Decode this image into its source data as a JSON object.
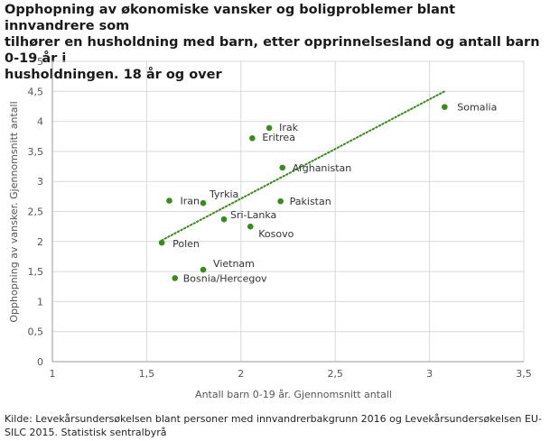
{
  "title_lines": [
    "Opphopning av økonomiske vansker og boligproblemer blant innvandrere som",
    "tilhører en husholdning med barn, etter opprinnelsesland og antall barn 0-19 år i",
    "husholdningen. 18 år og over"
  ],
  "caption": "Kilde: Levekårsundersøkelsen blant personer med innvandrerbakgrunn 2016 og Levekårsundersøkelsen EU-SILC 2015. Statistisk sentralbyrå",
  "colors": {
    "point": "#3a8a1c",
    "trend": "#3a8a1c",
    "grid": "#d9d9d9",
    "axis": "#999999"
  },
  "chart_data": {
    "type": "scatter",
    "xlabel": "Antall barn 0-19 år. Gjennomsnitt antall",
    "ylabel": "Opphopning av vansker. Gjennomsnitt antall",
    "xlim": [
      1,
      3.5
    ],
    "ylim": [
      0,
      5
    ],
    "xticks": [
      1,
      1.5,
      2,
      2.5,
      3,
      3.5
    ],
    "xtick_labels": [
      "1",
      "1,5",
      "2",
      "2,5",
      "3",
      "3,5"
    ],
    "yticks": [
      0,
      0.5,
      1,
      1.5,
      2,
      2.5,
      3,
      3.5,
      4,
      4.5,
      5
    ],
    "ytick_labels": [
      "0",
      "0,5",
      "1",
      "1,5",
      "2",
      "2,5",
      "3",
      "3,5",
      "4",
      "4,5",
      "5"
    ],
    "grid": true,
    "points": [
      {
        "label": "Somalia",
        "x": 3.08,
        "y": 4.24
      },
      {
        "label": "Irak",
        "x": 2.15,
        "y": 3.89
      },
      {
        "label": "Eritrea",
        "x": 2.06,
        "y": 3.72
      },
      {
        "label": "Afghanistan",
        "x": 2.22,
        "y": 3.23
      },
      {
        "label": "Pakistan",
        "x": 2.21,
        "y": 2.67
      },
      {
        "label": "Iran",
        "x": 1.62,
        "y": 2.68
      },
      {
        "label": "Tyrkia",
        "x": 1.8,
        "y": 2.64
      },
      {
        "label": "Sri-Lanka",
        "x": 1.91,
        "y": 2.37
      },
      {
        "label": "Kosovo",
        "x": 2.05,
        "y": 2.25
      },
      {
        "label": "Polen",
        "x": 1.58,
        "y": 1.98
      },
      {
        "label": "Vietnam",
        "x": 1.8,
        "y": 1.53
      },
      {
        "label": "Bosnia/Hercegov",
        "x": 1.65,
        "y": 1.39
      }
    ],
    "trendline": {
      "style": "dotted",
      "x": [
        1.58,
        3.08
      ],
      "y": [
        2.02,
        4.5
      ]
    }
  }
}
